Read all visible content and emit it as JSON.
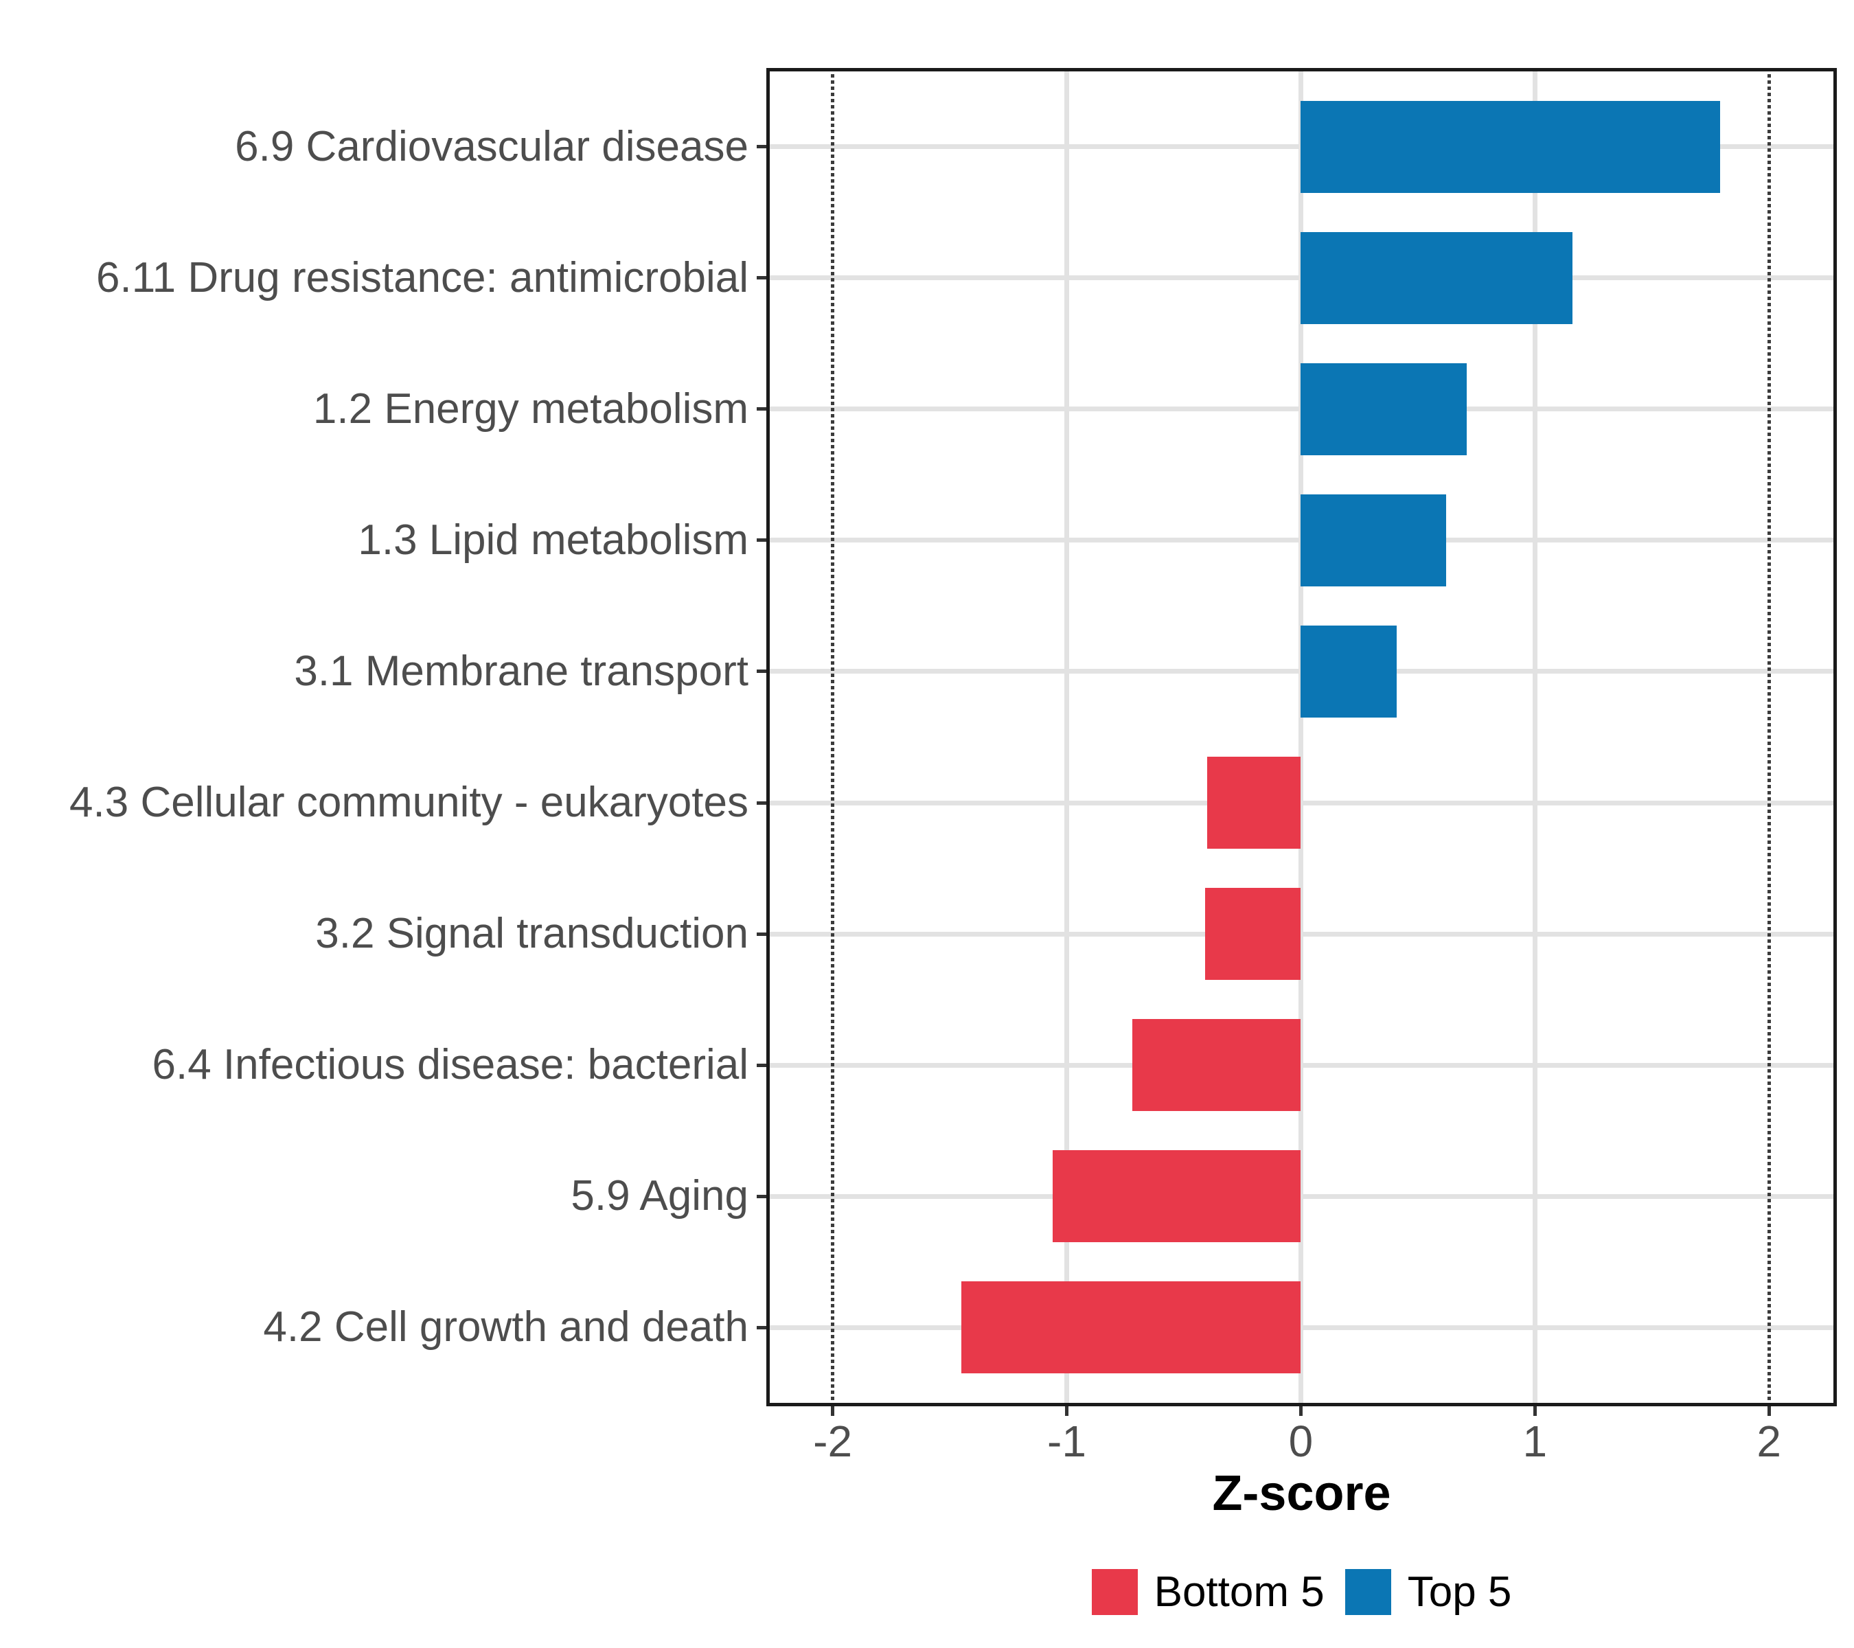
{
  "chart_data": {
    "type": "bar",
    "orientation": "horizontal",
    "xlabel": "Z-score",
    "categories": [
      "6.9 Cardiovascular disease",
      "6.11 Drug resistance: antimicrobial",
      "1.2 Energy metabolism",
      "1.3 Lipid metabolism",
      "3.1 Membrane transport",
      "4.3 Cellular community - eukaryotes",
      "3.2 Signal transduction",
      "6.4 Infectious disease: bacterial",
      "5.9 Aging",
      "4.2 Cell growth and death"
    ],
    "values": [
      1.79,
      1.16,
      0.71,
      0.62,
      0.41,
      -0.4,
      -0.41,
      -0.72,
      -1.06,
      -1.45
    ],
    "groups": [
      "Top 5",
      "Top 5",
      "Top 5",
      "Top 5",
      "Top 5",
      "Bottom 5",
      "Bottom 5",
      "Bottom 5",
      "Bottom 5",
      "Bottom 5"
    ],
    "xlim": [
      -2.28,
      2.29
    ],
    "x_ticks": [
      -2,
      -1,
      0,
      1,
      2
    ],
    "grid_x": [
      -1,
      0,
      1
    ],
    "grid": "major-only",
    "reference_lines": [
      {
        "x": -2,
        "style": "dotted"
      },
      {
        "x": 2,
        "style": "dotted"
      }
    ],
    "bar_width_fraction": 0.7,
    "legend": {
      "position": "bottom",
      "entries": [
        {
          "label": "Bottom 5",
          "color": "#E8394A"
        },
        {
          "label": "Top 5",
          "color": "#0B76B4"
        }
      ]
    },
    "colors": {
      "top5": "#0B76B4",
      "bottom5": "#E8394A",
      "grid": "#E2E2E2",
      "panel_border": "#1A1A1A",
      "tick": "#333333",
      "axis_text": "#4D4D4D",
      "axis_title": "#000000",
      "reference_line": "#3C3C3C",
      "background": "#FFFFFF"
    }
  }
}
